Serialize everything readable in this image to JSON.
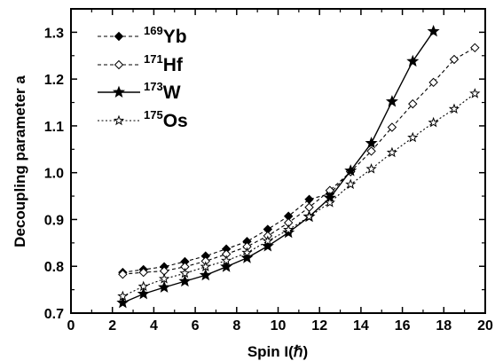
{
  "chart_data": {
    "type": "line",
    "xlabel": "Spin I(ℏ)",
    "ylabel": "Decoupling parameter a",
    "xlim": [
      0,
      20
    ],
    "ylim": [
      0.7,
      1.35
    ],
    "xticks": [
      "0",
      "2",
      "4",
      "6",
      "8",
      "10",
      "12",
      "14",
      "16",
      "18",
      "20"
    ],
    "yticks": [
      "0.7",
      "0.8",
      "0.9",
      "1.0",
      "1.1",
      "1.2",
      "1.3"
    ],
    "grid": false,
    "legend_position": "top-left",
    "series": [
      {
        "name": "169Yb",
        "mass": "169",
        "element": "Yb",
        "marker": "diamond-filled",
        "line": "dashed",
        "color": "#000000",
        "x": [
          2.5,
          3.5,
          4.5,
          5.5,
          6.5,
          7.5,
          8.5,
          9.5,
          10.5,
          11.5,
          12.5,
          13.5
        ],
        "y": [
          0.787,
          0.793,
          0.799,
          0.81,
          0.822,
          0.837,
          0.853,
          0.879,
          0.907,
          0.943,
          0.955,
          1.003
        ]
      },
      {
        "name": "171Hf",
        "mass": "171",
        "element": "Hf",
        "marker": "diamond-open",
        "line": "dashed",
        "color": "#000000",
        "x": [
          2.5,
          3.5,
          4.5,
          5.5,
          6.5,
          7.5,
          8.5,
          9.5,
          10.5,
          11.5,
          12.5,
          13.5,
          14.5,
          15.5,
          16.5,
          17.5,
          18.5,
          19.5
        ],
        "y": [
          0.783,
          0.787,
          0.79,
          0.799,
          0.811,
          0.826,
          0.842,
          0.865,
          0.893,
          0.926,
          0.962,
          1.002,
          1.046,
          1.097,
          1.147,
          1.193,
          1.242,
          1.267
        ]
      },
      {
        "name": "173W",
        "mass": "173",
        "element": "W",
        "marker": "star-filled",
        "line": "solid",
        "color": "#000000",
        "x": [
          2.5,
          3.5,
          4.5,
          5.5,
          6.5,
          7.5,
          8.5,
          9.5,
          10.5,
          11.5,
          12.5,
          13.5,
          14.5,
          15.5,
          16.5,
          17.5
        ],
        "y": [
          0.722,
          0.741,
          0.755,
          0.768,
          0.781,
          0.799,
          0.818,
          0.843,
          0.872,
          0.906,
          0.946,
          1.004,
          1.063,
          1.152,
          1.238,
          1.302
        ]
      },
      {
        "name": "175Os",
        "mass": "175",
        "element": "Os",
        "marker": "star-open",
        "line": "dotted",
        "color": "#000000",
        "x": [
          2.5,
          3.5,
          4.5,
          5.5,
          6.5,
          7.5,
          8.5,
          9.5,
          10.5,
          11.5,
          12.5,
          13.5,
          14.5,
          15.5,
          16.5,
          17.5,
          18.5,
          19.5
        ],
        "y": [
          0.736,
          0.757,
          0.773,
          0.785,
          0.799,
          0.812,
          0.829,
          0.854,
          0.878,
          0.906,
          0.936,
          0.975,
          1.008,
          1.043,
          1.075,
          1.107,
          1.136,
          1.169
        ]
      }
    ]
  }
}
